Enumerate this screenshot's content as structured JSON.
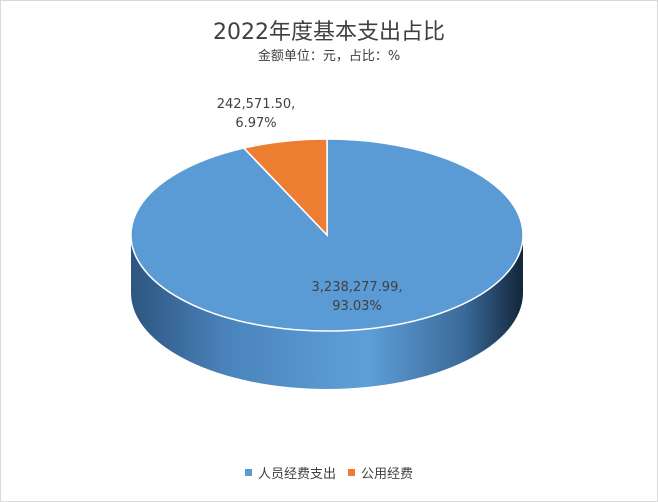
{
  "chart_data": {
    "type": "pie",
    "title": "2022年度基本支出占比",
    "subtitle": "金额单位：元，占比：%",
    "three_d": true,
    "legend_position": "bottom",
    "slices": [
      {
        "name": "人员经费支出",
        "value": 3238277.99,
        "value_label": "3,238,277.99,",
        "percent": 93.03,
        "percent_label": "93.03%",
        "color": "#5b9bd5",
        "side_color": "#4a82b8",
        "side_dark": "#1e3c5c"
      },
      {
        "name": "公用经费",
        "value": 242571.5,
        "value_label": "242,571.50,",
        "percent": 6.97,
        "percent_label": "6.97%",
        "color": "#ed7d31",
        "side_color": "#c86420",
        "side_dark": "#7a3a10"
      }
    ]
  }
}
